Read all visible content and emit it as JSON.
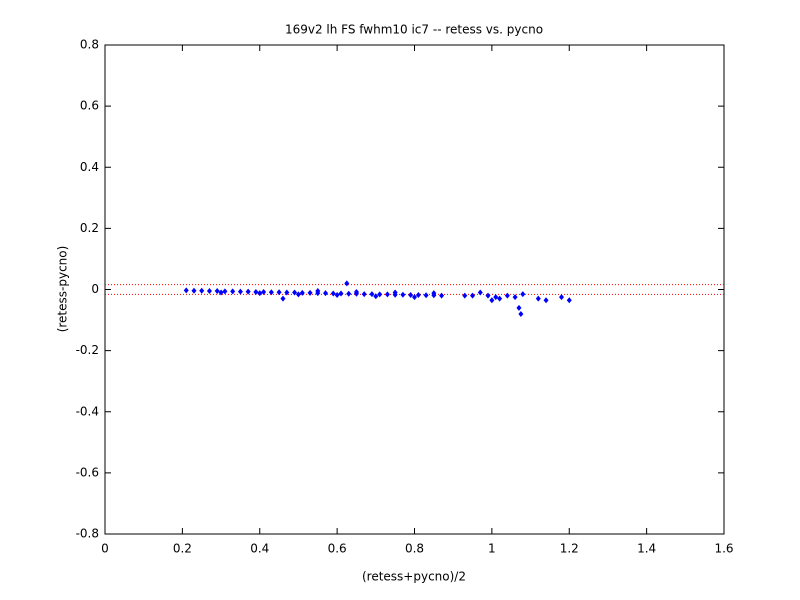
{
  "chart_data": {
    "type": "scatter",
    "title": "169v2 lh FS fwhm10 ic7 -- retess vs. pycno",
    "x_label": "(retess+pycno)/2",
    "y_label": "(retess-pycno)",
    "color": "#0000ff",
    "hline_color": "#ff0000",
    "hlines": [
      0.016,
      -0.016
    ],
    "x": [
      0.21,
      0.23,
      0.25,
      0.27,
      0.29,
      0.31,
      0.33,
      0.35,
      0.37,
      0.39,
      0.41,
      0.43,
      0.45,
      0.47,
      0.49,
      0.51,
      0.53,
      0.55,
      0.57,
      0.59,
      0.61,
      0.63,
      0.65,
      0.67,
      0.69,
      0.71,
      0.73,
      0.75,
      0.77,
      0.79,
      0.81,
      0.83,
      0.85,
      0.87,
      0.3,
      0.4,
      0.5,
      0.55,
      0.6,
      0.65,
      0.7,
      0.75,
      0.8,
      0.85,
      0.46,
      0.625,
      0.93,
      0.95,
      0.97,
      0.99,
      1.0,
      1.01,
      1.02,
      1.04,
      1.06,
      1.07,
      1.075,
      1.08,
      1.12,
      1.14,
      1.18,
      1.2
    ],
    "values": [
      -0.003,
      -0.004,
      -0.004,
      -0.005,
      -0.005,
      -0.006,
      -0.006,
      -0.007,
      -0.007,
      -0.008,
      -0.008,
      -0.009,
      -0.009,
      -0.01,
      -0.01,
      -0.011,
      -0.011,
      -0.012,
      -0.012,
      -0.013,
      -0.013,
      -0.014,
      -0.014,
      -0.015,
      -0.015,
      -0.016,
      -0.016,
      -0.017,
      -0.017,
      -0.018,
      -0.018,
      -0.019,
      -0.019,
      -0.02,
      -0.01,
      -0.012,
      -0.016,
      -0.005,
      -0.018,
      -0.008,
      -0.022,
      -0.01,
      -0.025,
      -0.012,
      -0.03,
      0.02,
      -0.02,
      -0.02,
      -0.01,
      -0.02,
      -0.035,
      -0.025,
      -0.03,
      -0.02,
      -0.025,
      -0.06,
      -0.08,
      -0.015,
      -0.03,
      -0.035,
      -0.025,
      -0.035
    ],
    "xlim": [
      0,
      1.6
    ],
    "ylim": [
      -0.8,
      0.8
    ],
    "xticks": [
      0,
      0.2,
      0.4,
      0.6,
      0.8,
      1,
      1.2,
      1.4,
      1.6
    ],
    "yticks": [
      -0.8,
      -0.6,
      -0.4,
      -0.2,
      0,
      0.2,
      0.4,
      0.6,
      0.8
    ]
  }
}
